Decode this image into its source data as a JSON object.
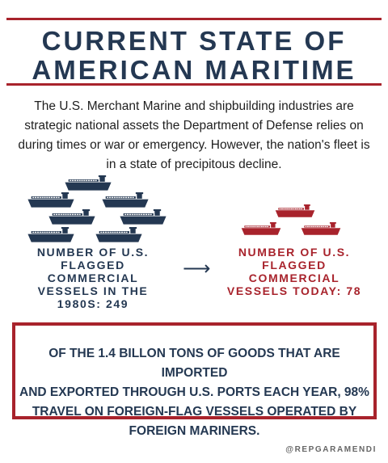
{
  "header": {
    "title_line1": "CURRENT STATE OF",
    "title_line2": "AMERICAN MARITIME"
  },
  "intro": {
    "lines": [
      "The U.S. Merchant Marine and shipbuilding industries are",
      "strategic national assets the Department of Defense relies on",
      "during times or war or emergency. However, the nation's fleet is",
      "in a state of precipitous decline."
    ]
  },
  "past_fleet": {
    "icon": "cargo-ship-icon",
    "color": "#243852",
    "label_lines": [
      "NUMBER OF U.S.",
      "FLAGGED",
      "COMMERCIAL",
      "VESSELS IN THE",
      "1980S: 249"
    ]
  },
  "arrow": {
    "icon": "arrow-right-icon",
    "glyph": "⟶"
  },
  "current_fleet": {
    "icon": "cargo-ship-icon",
    "color": "#a8232c",
    "label_lines": [
      "NUMBER OF U.S.",
      "FLAGGED",
      "COMMERCIAL",
      "VESSELS TODAY: 78"
    ]
  },
  "callout": {
    "border_color": "#a8232c",
    "lines": [
      "OF THE 1.4 BILLON TONS OF GOODS THAT ARE IMPORTED",
      "AND EXPORTED THROUGH U.S. PORTS EACH YEAR, 98%",
      "TRAVEL ON FOREIGN-FLAG VESSELS OPERATED BY",
      "FOREIGN MARINERS."
    ]
  },
  "footer": {
    "handle": "@REPGARAMENDI"
  }
}
